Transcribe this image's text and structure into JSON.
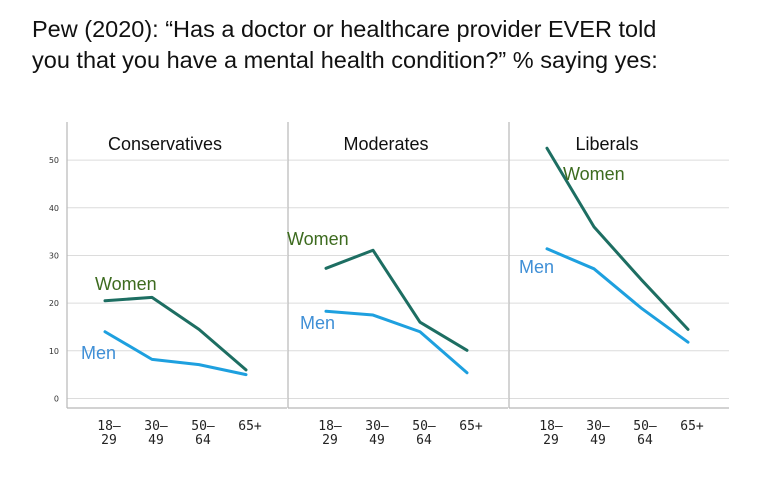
{
  "title": {
    "line1": "Pew (2020): “Has a doctor or healthcare provider EVER told",
    "line2": "you that you have a mental health condition?” % saying yes:"
  },
  "chart_data": {
    "type": "line",
    "yticks": [
      0,
      10,
      20,
      30,
      40,
      50
    ],
    "ylim": [
      -2,
      58
    ],
    "grid": true,
    "x_categories": [
      [
        "18–",
        "29"
      ],
      [
        "30–",
        "49"
      ],
      [
        "50–",
        "64"
      ],
      [
        "65+"
      ]
    ],
    "colors": {
      "Women": "#1d6e62",
      "Men": "#1ea0df"
    },
    "label_colors": {
      "Women": "#3d6b1f",
      "Men": "#3f8fd6"
    },
    "panels": [
      {
        "title": "Conservatives",
        "series": [
          {
            "name": "Women",
            "values": [
              20.5,
              21.2,
              14.5,
              6
            ]
          },
          {
            "name": "Men",
            "values": [
              14,
              8.2,
              7.1,
              5
            ]
          }
        ]
      },
      {
        "title": "Moderates",
        "series": [
          {
            "name": "Women",
            "values": [
              27.3,
              31.1,
              16,
              10.1
            ]
          },
          {
            "name": "Men",
            "values": [
              18.3,
              17.5,
              14,
              5.4
            ]
          }
        ]
      },
      {
        "title": "Liberals",
        "series": [
          {
            "name": "Women",
            "values": [
              52.5,
              36,
              25,
              14.5
            ]
          },
          {
            "name": "Men",
            "values": [
              31.4,
              27.2,
              19,
              11.8
            ]
          }
        ]
      }
    ]
  }
}
